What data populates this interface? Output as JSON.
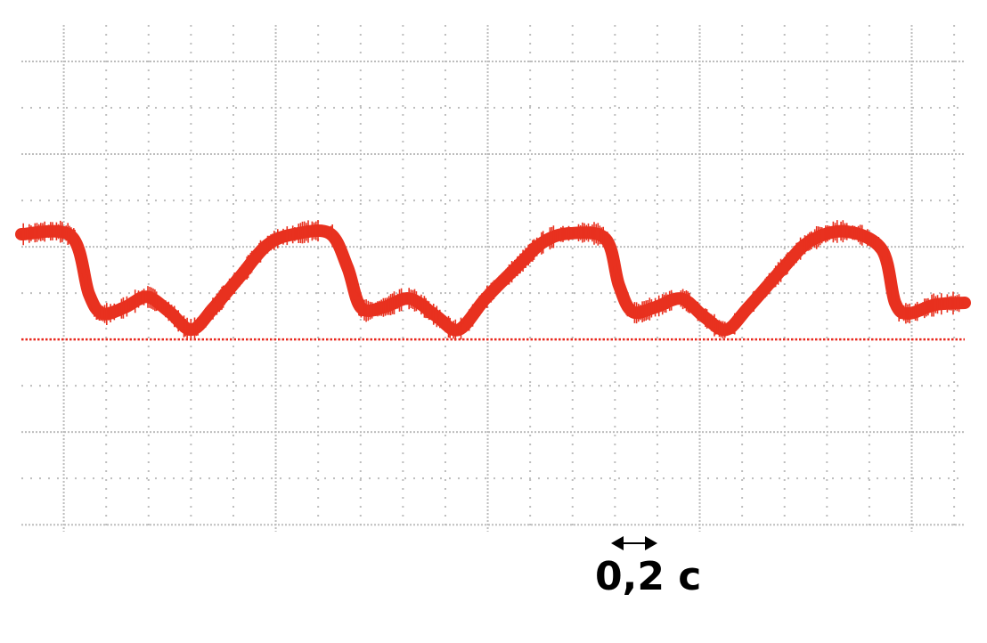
{
  "chart_data": {
    "type": "line",
    "title": "",
    "xlabel": "",
    "ylabel": "",
    "x_unit": "s",
    "y_unit": "divisions",
    "xlim": [
      0,
      4.45
    ],
    "ylim": [
      -4.15,
      6.75
    ],
    "grid": true,
    "grid_style": "dotted",
    "x_division": 0.2,
    "y_division": 1,
    "zero_line": {
      "y": 0,
      "style": "dotted",
      "color": "#e8281e"
    },
    "scale_bar": {
      "length": 0.2,
      "label": "0,2 c"
    },
    "series": [
      {
        "color": "#e8311f",
        "noisy": true,
        "x": [
          0,
          0.235,
          0.319,
          0.382,
          0.487,
          0.592,
          0.697,
          0.803,
          0.908,
          1.034,
          1.16,
          1.286,
          1.454,
          1.538,
          1.601,
          1.706,
          1.832,
          1.958,
          2.063,
          2.189,
          2.336,
          2.462,
          2.588,
          2.756,
          2.819,
          2.882,
          2.987,
          3.113,
          3.218,
          3.324,
          3.429,
          3.597,
          3.723,
          3.891,
          4.059,
          4.122,
          4.185,
          4.311,
          4.45
        ],
        "y": [
          2.27,
          2.23,
          0.98,
          0.56,
          0.69,
          0.92,
          0.6,
          0.21,
          0.69,
          1.37,
          2.04,
          2.27,
          2.29,
          1.56,
          0.69,
          0.69,
          0.88,
          0.5,
          0.21,
          0.88,
          1.56,
          2.1,
          2.29,
          2.17,
          1.17,
          0.6,
          0.69,
          0.88,
          0.5,
          0.21,
          0.69,
          1.56,
          2.13,
          2.33,
          1.94,
          0.79,
          0.56,
          0.75,
          0.79
        ]
      }
    ]
  }
}
